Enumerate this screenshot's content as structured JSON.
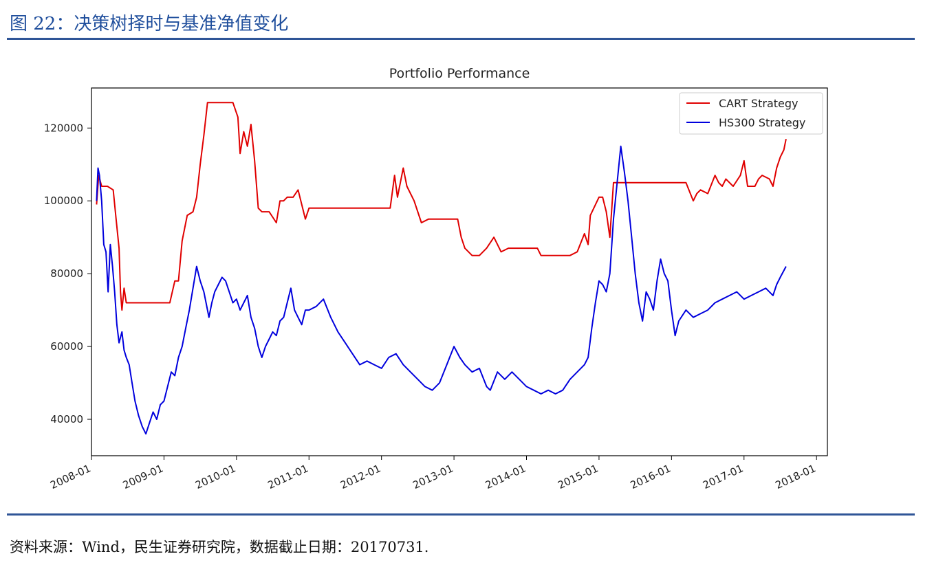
{
  "page": {
    "figure_label": "图 22：决策树择时与基准净值变化",
    "source_note": "资料来源：Wind，民生证券研究院，数据截止日期：20170731."
  },
  "chart_data": {
    "type": "line",
    "title": "Portfolio Performance",
    "xlabel": "",
    "ylabel": "",
    "x_ticks": [
      "2008-01",
      "2009-01",
      "2010-01",
      "2011-01",
      "2012-01",
      "2013-01",
      "2014-01",
      "2015-01",
      "2016-01",
      "2017-01",
      "2018-01"
    ],
    "y_ticks": [
      40000,
      60000,
      80000,
      100000,
      120000
    ],
    "xlim": [
      2008.0,
      2018.15
    ],
    "ylim": [
      30000,
      131000
    ],
    "grid": false,
    "legend_position": "top-right",
    "series": [
      {
        "name": "CART Strategy",
        "color": "#e00000",
        "x": [
          2008.07,
          2008.1,
          2008.14,
          2008.17,
          2008.22,
          2008.3,
          2008.34,
          2008.38,
          2008.4,
          2008.42,
          2008.45,
          2008.48,
          2008.52,
          2008.56,
          2008.6,
          2008.7,
          2008.8,
          2008.95,
          2009.0,
          2009.08,
          2009.15,
          2009.2,
          2009.25,
          2009.32,
          2009.4,
          2009.45,
          2009.5,
          2009.55,
          2009.6,
          2009.62,
          2009.7,
          2009.8,
          2009.95,
          2010.02,
          2010.05,
          2010.1,
          2010.15,
          2010.2,
          2010.25,
          2010.3,
          2010.35,
          2010.4,
          2010.45,
          2010.55,
          2010.6,
          2010.65,
          2010.7,
          2010.78,
          2010.85,
          2010.9,
          2010.95,
          2011.0,
          2011.1,
          2011.5,
          2012.0,
          2012.08,
          2012.12,
          2012.18,
          2012.22,
          2012.3,
          2012.35,
          2012.45,
          2012.55,
          2012.65,
          2012.75,
          2012.85,
          2013.05,
          2013.1,
          2013.15,
          2013.25,
          2013.35,
          2013.45,
          2013.55,
          2013.65,
          2013.75,
          2013.85,
          2014.15,
          2014.2,
          2014.3,
          2014.5,
          2014.6,
          2014.7,
          2014.8,
          2014.85,
          2014.88,
          2015.0,
          2015.05,
          2015.1,
          2015.15,
          2015.2,
          2015.25,
          2015.3,
          2015.35,
          2015.45,
          2015.6,
          2015.8,
          2016.0,
          2016.2,
          2016.3,
          2016.35,
          2016.4,
          2016.5,
          2016.6,
          2016.65,
          2016.7,
          2016.75,
          2016.85,
          2016.95,
          2017.0,
          2017.05,
          2017.15,
          2017.2,
          2017.25,
          2017.35,
          2017.4,
          2017.45,
          2017.5,
          2017.55,
          2017.58
        ],
        "y": [
          99000,
          107000,
          104000,
          104000,
          104000,
          103000,
          95000,
          87000,
          75000,
          70000,
          76000,
          72000,
          72000,
          72000,
          72000,
          72000,
          72000,
          72000,
          72000,
          72000,
          78000,
          78000,
          89000,
          96000,
          97000,
          101000,
          110000,
          118000,
          127000,
          127000,
          127000,
          127000,
          127000,
          123000,
          113000,
          119000,
          115000,
          121000,
          111000,
          98000,
          97000,
          97000,
          97000,
          94000,
          100000,
          100000,
          101000,
          101000,
          103000,
          99000,
          95000,
          98000,
          98000,
          98000,
          98000,
          98000,
          98000,
          107000,
          101000,
          109000,
          104000,
          100000,
          94000,
          95000,
          95000,
          95000,
          95000,
          90000,
          87000,
          85000,
          85000,
          87000,
          90000,
          86000,
          87000,
          87000,
          87000,
          85000,
          85000,
          85000,
          85000,
          86000,
          91000,
          88000,
          96000,
          101000,
          101000,
          97000,
          90000,
          105000,
          105000,
          105000,
          105000,
          105000,
          105000,
          105000,
          105000,
          105000,
          100000,
          102000,
          103000,
          102000,
          107000,
          105000,
          104000,
          106000,
          104000,
          107000,
          111000,
          104000,
          104000,
          106000,
          107000,
          106000,
          104000,
          109000,
          112000,
          114000,
          117000
        ]
      },
      {
        "name": "HS300 Strategy",
        "color": "#0000dd",
        "x": [
          2008.07,
          2008.09,
          2008.11,
          2008.14,
          2008.17,
          2008.2,
          2008.23,
          2008.26,
          2008.29,
          2008.32,
          2008.35,
          2008.38,
          2008.42,
          2008.45,
          2008.48,
          2008.52,
          2008.56,
          2008.6,
          2008.65,
          2008.7,
          2008.75,
          2008.8,
          2008.85,
          2008.9,
          2008.95,
          2009.0,
          2009.05,
          2009.1,
          2009.15,
          2009.2,
          2009.25,
          2009.3,
          2009.35,
          2009.4,
          2009.45,
          2009.5,
          2009.55,
          2009.58,
          2009.62,
          2009.66,
          2009.7,
          2009.75,
          2009.8,
          2009.85,
          2009.9,
          2009.95,
          2010.0,
          2010.05,
          2010.1,
          2010.15,
          2010.2,
          2010.25,
          2010.3,
          2010.35,
          2010.4,
          2010.45,
          2010.5,
          2010.55,
          2010.6,
          2010.65,
          2010.7,
          2010.75,
          2010.8,
          2010.85,
          2010.9,
          2010.95,
          2011.0,
          2011.1,
          2011.2,
          2011.3,
          2011.4,
          2011.5,
          2011.6,
          2011.7,
          2011.8,
          2011.9,
          2012.0,
          2012.1,
          2012.2,
          2012.3,
          2012.4,
          2012.5,
          2012.6,
          2012.7,
          2012.8,
          2012.9,
          2013.0,
          2013.08,
          2013.15,
          2013.25,
          2013.35,
          2013.45,
          2013.5,
          2013.6,
          2013.7,
          2013.8,
          2013.9,
          2014.0,
          2014.1,
          2014.2,
          2014.3,
          2014.4,
          2014.5,
          2014.6,
          2014.7,
          2014.8,
          2014.85,
          2014.9,
          2014.95,
          2015.0,
          2015.05,
          2015.1,
          2015.15,
          2015.2,
          2015.25,
          2015.3,
          2015.35,
          2015.4,
          2015.45,
          2015.5,
          2015.55,
          2015.6,
          2015.65,
          2015.7,
          2015.75,
          2015.8,
          2015.85,
          2015.9,
          2015.95,
          2016.0,
          2016.05,
          2016.1,
          2016.2,
          2016.3,
          2016.4,
          2016.5,
          2016.6,
          2016.7,
          2016.8,
          2016.9,
          2017.0,
          2017.1,
          2017.2,
          2017.3,
          2017.4,
          2017.45,
          2017.5,
          2017.58
        ],
        "y": [
          100000,
          109000,
          107000,
          100000,
          88000,
          86000,
          75000,
          88000,
          82000,
          75000,
          66000,
          61000,
          64000,
          59000,
          57000,
          55000,
          50000,
          45000,
          41000,
          38000,
          36000,
          39000,
          42000,
          40000,
          44000,
          45000,
          49000,
          53000,
          52000,
          57000,
          60000,
          65000,
          70000,
          76000,
          82000,
          78000,
          75000,
          72000,
          68000,
          72000,
          75000,
          77000,
          79000,
          78000,
          75000,
          72000,
          73000,
          70000,
          72000,
          74000,
          68000,
          65000,
          60000,
          57000,
          60000,
          62000,
          64000,
          63000,
          67000,
          68000,
          72000,
          76000,
          70000,
          68000,
          66000,
          70000,
          70000,
          71000,
          73000,
          68000,
          64000,
          61000,
          58000,
          55000,
          56000,
          55000,
          54000,
          57000,
          58000,
          55000,
          53000,
          51000,
          49000,
          48000,
          50000,
          55000,
          60000,
          57000,
          55000,
          53000,
          54000,
          49000,
          48000,
          53000,
          51000,
          53000,
          51000,
          49000,
          48000,
          47000,
          48000,
          47000,
          48000,
          51000,
          53000,
          55000,
          57000,
          65000,
          72000,
          78000,
          77000,
          75000,
          80000,
          95000,
          105000,
          115000,
          108000,
          100000,
          90000,
          80000,
          72000,
          67000,
          75000,
          73000,
          70000,
          78000,
          84000,
          80000,
          78000,
          70000,
          63000,
          67000,
          70000,
          68000,
          69000,
          70000,
          72000,
          73000,
          74000,
          75000,
          73000,
          74000,
          75000,
          76000,
          74000,
          77000,
          79000,
          82000
        ]
      }
    ]
  }
}
